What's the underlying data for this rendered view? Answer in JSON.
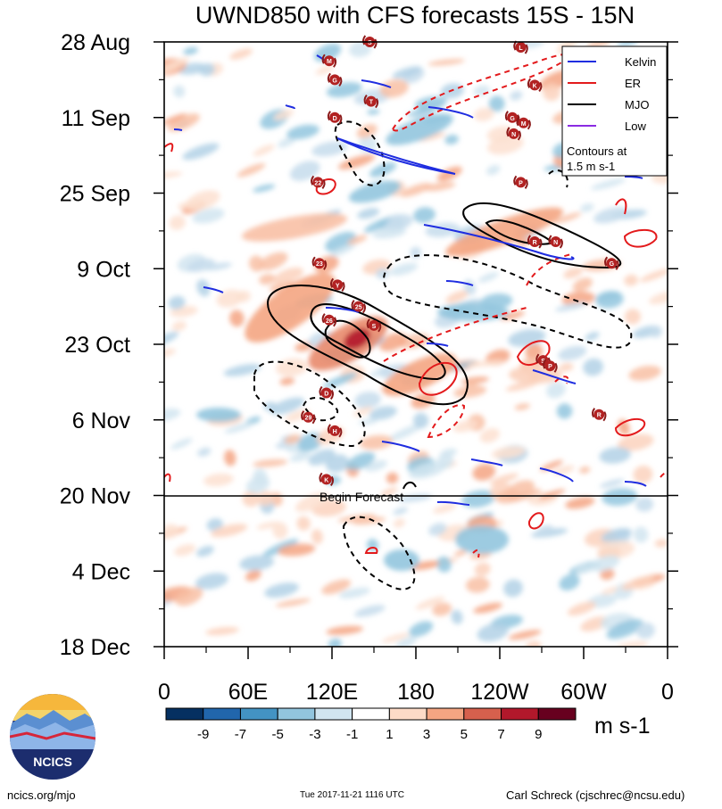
{
  "chart_data": {
    "type": "heatmap",
    "title": "UWND850 with CFS forecasts  15S - 15N",
    "xlabel": "",
    "ylabel": "",
    "x_ticks": [
      {
        "label": "0",
        "lon": 0
      },
      {
        "label": "60E",
        "lon": 60
      },
      {
        "label": "120E",
        "lon": 120
      },
      {
        "label": "180",
        "lon": 180
      },
      {
        "label": "120W",
        "lon": 240
      },
      {
        "label": "60W",
        "lon": 300
      },
      {
        "label": "0",
        "lon": 360
      }
    ],
    "xlim": [
      0,
      360
    ],
    "y_ticks": [
      {
        "label": "28 Aug",
        "day": 0
      },
      {
        "label": "11 Sep",
        "day": 14
      },
      {
        "label": "25 Sep",
        "day": 28
      },
      {
        "label": "9 Oct",
        "day": 42
      },
      {
        "label": "23 Oct",
        "day": 56
      },
      {
        "label": "6 Nov",
        "day": 70
      },
      {
        "label": "20 Nov",
        "day": 84
      },
      {
        "label": "4 Dec",
        "day": 98
      },
      {
        "label": "18 Dec",
        "day": 112
      }
    ],
    "ylim_days": [
      0,
      112
    ],
    "forecast_start_day": 84,
    "forecast_label": "Begin Forecast",
    "colorbar": {
      "unit": "m s-1",
      "labels": [
        "-9",
        "-7",
        "-5",
        "-3",
        "-1",
        "1",
        "3",
        "5",
        "7",
        "9"
      ],
      "colors": [
        "#053061",
        "#2166ac",
        "#4393c3",
        "#92c5de",
        "#d1e5f0",
        "#ffffff",
        "#fddbc7",
        "#f4a582",
        "#d6604d",
        "#b2182b",
        "#67001f"
      ]
    },
    "legend": {
      "placement": "top-right",
      "entries": [
        {
          "name": "Kelvin",
          "color": "#1f2de0"
        },
        {
          "name": "ER",
          "color": "#e31a1c"
        },
        {
          "name": "MJO",
          "color": "#000000"
        },
        {
          "name": "Low",
          "color": "#8a2be2"
        }
      ],
      "note_line1": "Contours at",
      "note_line2": "1.5 m s-1"
    },
    "storms": [
      {
        "label": "S",
        "lon": 147,
        "day": 0
      },
      {
        "label": "L",
        "lon": 255,
        "day": 1
      },
      {
        "label": "M",
        "lon": 118,
        "day": 3.5
      },
      {
        "label": "K",
        "lon": 265,
        "day": 8
      },
      {
        "label": "G",
        "lon": 122,
        "day": 7
      },
      {
        "label": "T",
        "lon": 148,
        "day": 11
      },
      {
        "label": "D",
        "lon": 122,
        "day": 14
      },
      {
        "label": "G",
        "lon": 249,
        "day": 14
      },
      {
        "label": "M",
        "lon": 257,
        "day": 15
      },
      {
        "label": "N",
        "lon": 250,
        "day": 17
      },
      {
        "label": "22",
        "lon": 110,
        "day": 26
      },
      {
        "label": "P",
        "lon": 255,
        "day": 26
      },
      {
        "label": "R",
        "lon": 265,
        "day": 37
      },
      {
        "label": "N",
        "lon": 280,
        "day": 37
      },
      {
        "label": "G",
        "lon": 320,
        "day": 41
      },
      {
        "label": "23",
        "lon": 111,
        "day": 41
      },
      {
        "label": "Y",
        "lon": 124,
        "day": 45
      },
      {
        "label": "25",
        "lon": 139,
        "day": 49
      },
      {
        "label": "26",
        "lon": 118,
        "day": 51.5
      },
      {
        "label": "S",
        "lon": 150,
        "day": 52.5
      },
      {
        "label": "S",
        "lon": 271,
        "day": 59
      },
      {
        "label": "P",
        "lon": 276,
        "day": 60
      },
      {
        "label": "D",
        "lon": 116,
        "day": 65
      },
      {
        "label": "29",
        "lon": 103,
        "day": 69.5
      },
      {
        "label": "R",
        "lon": 311,
        "day": 69
      },
      {
        "label": "H",
        "lon": 122,
        "day": 72
      },
      {
        "label": "K",
        "lon": 116,
        "day": 81
      }
    ]
  },
  "footer": {
    "left": "ncics.org/mjo",
    "middle": "Tue 2017-11-21 1116 UTC",
    "right": "Carl Schreck (cjschrec@ncsu.edu)",
    "logo_text": "NCICS"
  }
}
